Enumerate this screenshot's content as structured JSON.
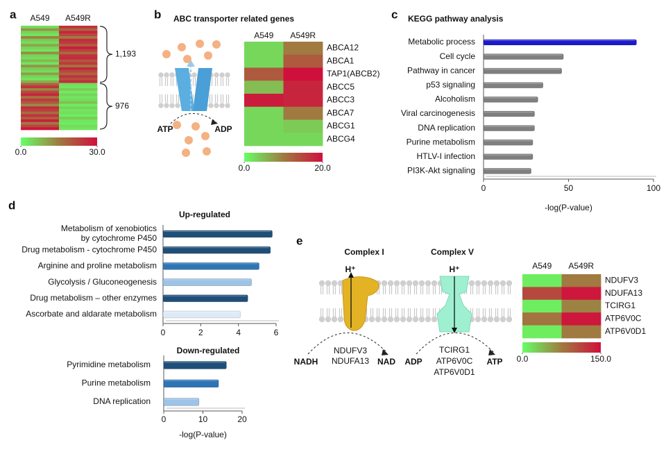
{
  "figure": {
    "panel_labels": [
      "a",
      "b",
      "c",
      "d",
      "e"
    ],
    "panel_b_diagram": {
      "left": "ATP",
      "right": "ADP"
    },
    "panel_e_diagram": {
      "complex_1": {
        "title": "Complex I",
        "ion": "H⁺",
        "genes": [
          "NDUFV3",
          "NDUFA13"
        ],
        "substrate": "NADH",
        "product": "NAD"
      },
      "complex_5": {
        "title": "Complex V",
        "ion": "H⁺",
        "genes": [
          "TCIRG1",
          "ATP6V0C",
          "ATP6V0D1"
        ],
        "substrate": "ADP",
        "product": "ATP"
      }
    }
  },
  "chart_data": [
    {
      "type": "heatmap",
      "columns": [
        "A549",
        "A549R"
      ],
      "clusters": [
        {
          "size": {
            "value": 1193,
            "label": "1,193"
          },
          "values": [
            [
              4,
              25
            ],
            [
              12,
              18
            ],
            [
              5,
              27
            ],
            [
              3,
              22
            ],
            [
              14,
              15
            ],
            [
              6,
              26
            ],
            [
              4,
              24
            ],
            [
              10,
              19
            ],
            [
              5,
              28
            ],
            [
              3,
              23
            ],
            [
              13,
              17
            ],
            [
              5,
              25
            ],
            [
              4,
              26
            ],
            [
              8,
              20
            ],
            [
              3,
              24
            ],
            [
              12,
              16
            ],
            [
              6,
              27
            ],
            [
              4,
              22
            ],
            [
              11,
              18
            ],
            [
              5,
              25
            ],
            [
              3,
              21
            ],
            [
              9,
              26
            ]
          ]
        },
        {
          "size": 976,
          "values": [
            [
              18,
              4
            ],
            [
              25,
              3
            ],
            [
              14,
              6
            ],
            [
              22,
              2
            ],
            [
              27,
              5
            ],
            [
              16,
              3
            ],
            [
              24,
              4
            ],
            [
              20,
              7
            ],
            [
              13,
              2
            ],
            [
              26,
              5
            ],
            [
              23,
              3
            ],
            [
              17,
              4
            ],
            [
              25,
              2
            ],
            [
              19,
              6
            ],
            [
              28,
              3
            ],
            [
              15,
              2
            ],
            [
              22,
              4
            ],
            [
              29,
              3
            ]
          ]
        }
      ],
      "colorscale": [
        "#66ff66",
        "#a07a40",
        "#d0103c"
      ],
      "clim": [
        0,
        30
      ],
      "cticks": [
        {
          "value": 0,
          "label": "0.0"
        },
        {
          "value": 30,
          "label": "30.0"
        }
      ]
    },
    {
      "type": "heatmap",
      "title": "ABC transporter related genes",
      "columns": [
        "A549",
        "A549R"
      ],
      "rows": [
        "ABCA12",
        "ABCA1",
        "TAP1(ABCB2)",
        "ABCC5",
        "ABCC3",
        "ABCA7",
        "ABCG1",
        "ABCG4"
      ],
      "values": [
        [
          3,
          10
        ],
        [
          3,
          13
        ],
        [
          13,
          20
        ],
        [
          5,
          18
        ],
        [
          19,
          18
        ],
        [
          3,
          10
        ],
        [
          3,
          4
        ],
        [
          3,
          3
        ]
      ],
      "colorscale": [
        "#66ff66",
        "#a07a40",
        "#d0103c"
      ],
      "clim": [
        0,
        20
      ],
      "cticks": [
        {
          "value": 0,
          "label": "0.0"
        },
        {
          "value": 20,
          "label": "20.0"
        }
      ]
    },
    {
      "type": "bar",
      "title": "KEGG pathway analysis",
      "categories": [
        "Metabolic process",
        "Cell cycle",
        "Pathway in cancer",
        "p53 signaling",
        "Alcoholism",
        "Viral carcinogenesis",
        "DNA replication",
        "Purine metabolism",
        "HTLV-I infection",
        "PI3K-Akt signaling"
      ],
      "values": [
        90,
        47,
        46,
        35,
        32,
        30,
        30,
        29,
        29,
        28
      ],
      "colors": [
        "#1a1acc",
        "#7f7f7f",
        "#7f7f7f",
        "#7f7f7f",
        "#7f7f7f",
        "#7f7f7f",
        "#7f7f7f",
        "#7f7f7f",
        "#7f7f7f",
        "#7f7f7f"
      ],
      "xlim": [
        0,
        100
      ],
      "xticks": [
        0,
        50,
        100
      ],
      "xlabel": "-log(P-value)"
    },
    {
      "type": "bar",
      "title": "Up-regulated",
      "categories": [
        "Metabolism of xenobiotics\nby cytochrome P450",
        "Drug metabolism - cytochrome P450",
        "Arginine and proline metabolism",
        "Glycolysis / Gluconeogenesis",
        "Drug metabolism – other enzymes",
        "Ascorbate and aldarate metabolism"
      ],
      "values": [
        5.8,
        5.7,
        5.1,
        4.7,
        4.5,
        4.1
      ],
      "colors": [
        "#1f4e79",
        "#1f4e79",
        "#2e75b6",
        "#9dc3e6",
        "#1f4e79",
        "#deebf7"
      ],
      "xlim": [
        0,
        6
      ],
      "xticks": [
        0,
        2,
        4,
        6
      ]
    },
    {
      "type": "bar",
      "title": "Down-regulated",
      "categories": [
        "Pyrimidine metabolism",
        "Purine metabolism",
        "DNA replication"
      ],
      "values": [
        16,
        14,
        9
      ],
      "colors": [
        "#1f4e79",
        "#2e75b6",
        "#9dc3e6"
      ],
      "xlim": [
        0,
        20
      ],
      "xticks": [
        0,
        10,
        20
      ],
      "xlabel": "-log(P-value)"
    },
    {
      "type": "heatmap",
      "columns": [
        "A549",
        "A549R"
      ],
      "rows": [
        "NDUFV3",
        "NDUFA13",
        "TCIRG1",
        "ATP6V0C",
        "ATP6V0D1"
      ],
      "values": [
        [
          10,
          75
        ],
        [
          110,
          145
        ],
        [
          10,
          70
        ],
        [
          80,
          145
        ],
        [
          10,
          75
        ]
      ],
      "colorscale": [
        "#66ff66",
        "#a07a40",
        "#d0103c"
      ],
      "clim": [
        0,
        150
      ],
      "cticks": [
        {
          "value": 0,
          "label": "0.0"
        },
        {
          "value": 150,
          "label": "150.0"
        }
      ]
    }
  ]
}
